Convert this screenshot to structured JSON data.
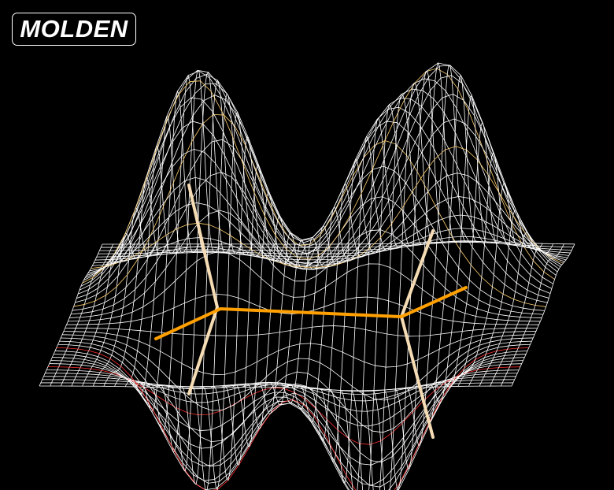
{
  "app": {
    "title": "MOLDEN"
  }
}
